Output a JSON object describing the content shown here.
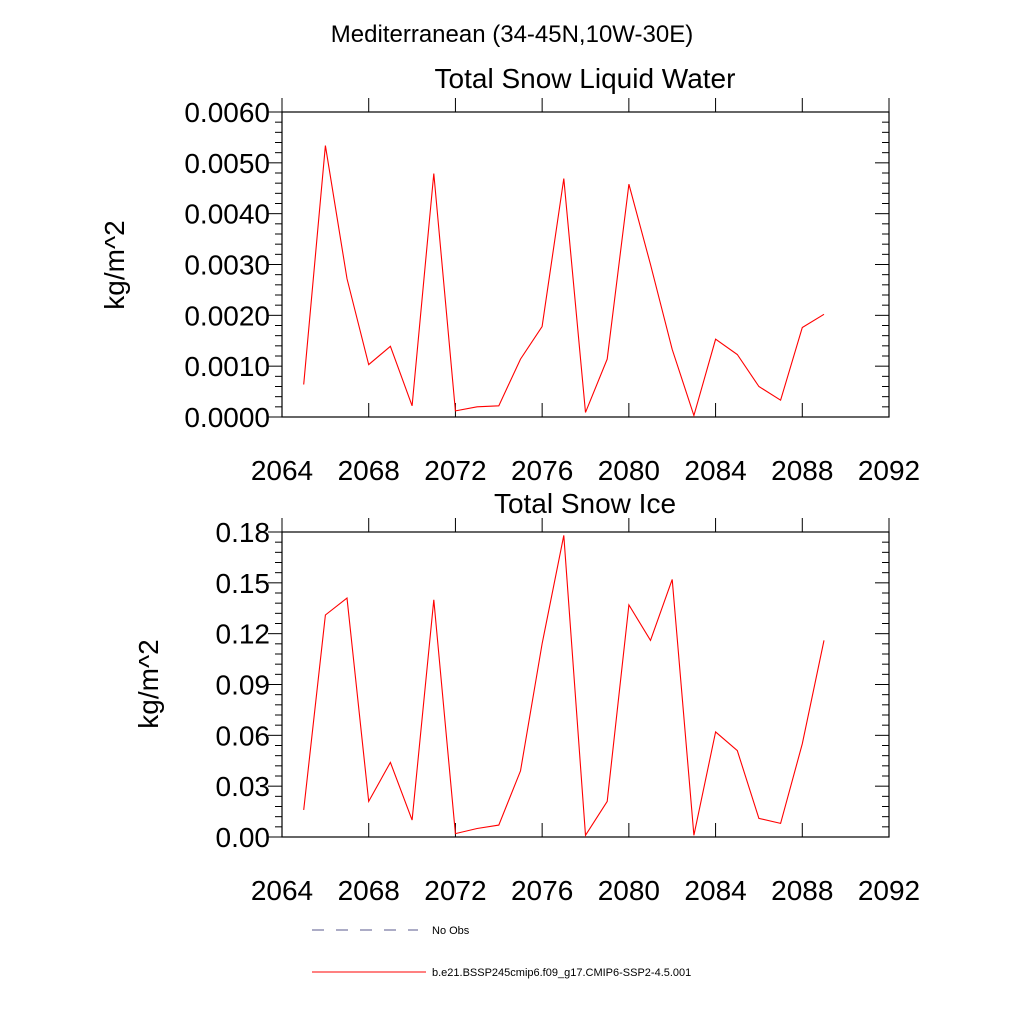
{
  "figure": {
    "suptitle": "Mediterranean (34-45N,10W-30E)"
  },
  "chart_data": [
    {
      "type": "line",
      "title": "Total Snow Liquid Water",
      "xlabel": "",
      "ylabel": "kg/m^2",
      "xlim": [
        2064,
        2092
      ],
      "ylim": [
        0.0,
        0.006
      ],
      "xticks": [
        2064,
        2068,
        2072,
        2076,
        2080,
        2084,
        2088,
        2092
      ],
      "xtick_labels": [
        "2064",
        "2068",
        "2072",
        "2076",
        "2080",
        "2084",
        "2088",
        "2092"
      ],
      "yticks": [
        0.0,
        0.001,
        0.002,
        0.003,
        0.004,
        0.005,
        0.006
      ],
      "ytick_labels": [
        "0.0000",
        "0.0010",
        "0.0020",
        "0.0030",
        "0.0040",
        "0.0050",
        "0.0060"
      ],
      "grid": false,
      "x": [
        2065,
        2066,
        2067,
        2068,
        2069,
        2070,
        2071,
        2072,
        2073,
        2074,
        2075,
        2076,
        2077,
        2078,
        2079,
        2080,
        2081,
        2082,
        2083,
        2084,
        2085,
        2086,
        2087,
        2088,
        2089
      ],
      "series": [
        {
          "name": "b.e21.BSSP245cmip6.f09_g17.CMIP6-SSP2-4.5.001",
          "color": "#ff0000",
          "values": [
            0.00064,
            0.00534,
            0.00272,
            0.00103,
            0.00139,
            0.00022,
            0.00479,
            0.00012,
            0.0002,
            0.00022,
            0.00114,
            0.00178,
            0.00469,
            9e-05,
            0.00114,
            0.00458,
            0.003,
            0.00133,
            3e-05,
            0.00153,
            0.00123,
            0.0006,
            0.00033,
            0.00176,
            0.00202
          ]
        }
      ]
    },
    {
      "type": "line",
      "title": "Total Snow Ice",
      "xlabel": "",
      "ylabel": "kg/m^2",
      "xlim": [
        2064,
        2092
      ],
      "ylim": [
        0.0,
        0.18
      ],
      "xticks": [
        2064,
        2068,
        2072,
        2076,
        2080,
        2084,
        2088,
        2092
      ],
      "xtick_labels": [
        "2064",
        "2068",
        "2072",
        "2076",
        "2080",
        "2084",
        "2088",
        "2092"
      ],
      "yticks": [
        0.0,
        0.03,
        0.06,
        0.09,
        0.12,
        0.15,
        0.18
      ],
      "ytick_labels": [
        "0.00",
        "0.03",
        "0.06",
        "0.09",
        "0.12",
        "0.15",
        "0.18"
      ],
      "grid": false,
      "x": [
        2065,
        2066,
        2067,
        2068,
        2069,
        2070,
        2071,
        2072,
        2073,
        2074,
        2075,
        2076,
        2077,
        2078,
        2079,
        2080,
        2081,
        2082,
        2083,
        2084,
        2085,
        2086,
        2087,
        2088,
        2089
      ],
      "series": [
        {
          "name": "b.e21.BSSP245cmip6.f09_g17.CMIP6-SSP2-4.5.001",
          "color": "#ff0000",
          "values": [
            0.016,
            0.131,
            0.141,
            0.021,
            0.044,
            0.01,
            0.14,
            0.002,
            0.005,
            0.007,
            0.039,
            0.114,
            0.178,
            0.001,
            0.021,
            0.137,
            0.116,
            0.152,
            0.001,
            0.062,
            0.051,
            0.011,
            0.008,
            0.055,
            0.116
          ]
        }
      ]
    }
  ],
  "legend": {
    "placement": "bottom",
    "items": [
      {
        "label": "No Obs",
        "color": "#5a5a8c",
        "style": "dashed"
      },
      {
        "label": "b.e21.BSSP245cmip6.f09_g17.CMIP6-SSP2-4.5.001",
        "color": "#ff0000",
        "style": "solid"
      }
    ]
  }
}
